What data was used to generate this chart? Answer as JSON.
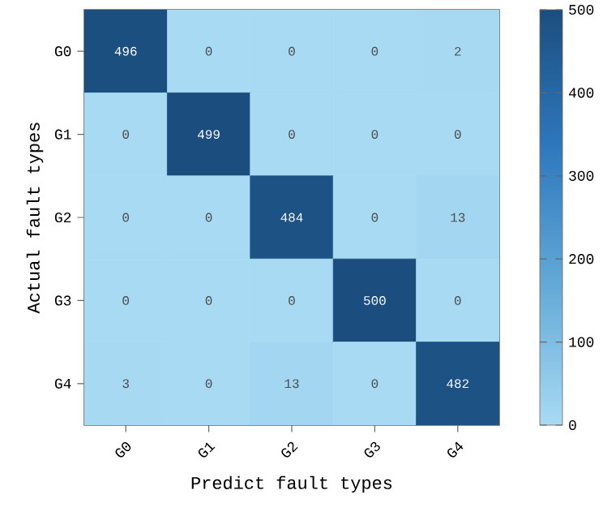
{
  "chart_data": {
    "type": "heatmap",
    "xlabel": "Predict fault types",
    "ylabel": "Actual fault types",
    "categories": [
      "G0",
      "G1",
      "G2",
      "G3",
      "G4"
    ],
    "y_categories": [
      "G0",
      "G1",
      "G2",
      "G3",
      "G4"
    ],
    "cells": [
      [
        496,
        0,
        0,
        0,
        2
      ],
      [
        0,
        499,
        0,
        0,
        0
      ],
      [
        0,
        0,
        484,
        0,
        13
      ],
      [
        0,
        0,
        0,
        500,
        0
      ],
      [
        3,
        0,
        13,
        0,
        482
      ]
    ],
    "data_labels": true,
    "clim": [
      0,
      500
    ],
    "cticks": [
      0,
      100,
      200,
      300,
      400,
      500
    ]
  }
}
